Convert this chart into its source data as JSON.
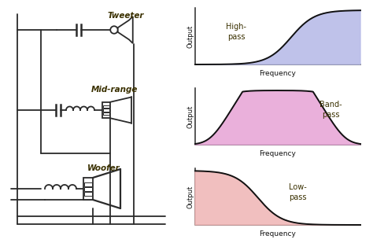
{
  "bg_color": "#ffffff",
  "lc": "#2a2a2a",
  "lw": 1.3,
  "tweeter_label": "Tweeter",
  "midrange_label": "Mid-range",
  "woofer_label": "Woofer",
  "highpass_label": "High-\npass",
  "bandpass_label": "Band-\npass",
  "lowpass_label": "Low-\npass",
  "output_label": "Output",
  "freq_label": "Frequency",
  "highpass_fill": "#b8bce8",
  "bandpass_fill": "#e8a8d8",
  "lowpass_fill": "#f0b8b8",
  "curve_color": "#111111",
  "label_color": "#3a3000",
  "figsize": [
    4.74,
    3.09
  ],
  "dpi": 100
}
